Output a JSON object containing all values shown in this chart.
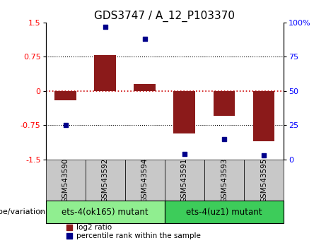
{
  "title": "GDS3747 / A_12_P103370",
  "samples": [
    "GSM543590",
    "GSM543592",
    "GSM543594",
    "GSM543591",
    "GSM543593",
    "GSM543595"
  ],
  "log2_ratio": [
    -0.2,
    0.78,
    0.15,
    -0.93,
    -0.55,
    -1.1
  ],
  "percentile": [
    25,
    97,
    88,
    4,
    15,
    3
  ],
  "ylim_left": [
    -1.5,
    1.5
  ],
  "ylim_right": [
    0,
    100
  ],
  "yticks_left": [
    -1.5,
    -0.75,
    0,
    0.75,
    1.5
  ],
  "yticks_right": [
    0,
    25,
    50,
    75,
    100
  ],
  "ytick_labels_left": [
    "-1.5",
    "-0.75",
    "0",
    "0.75",
    "1.5"
  ],
  "ytick_labels_right": [
    "0",
    "25",
    "50",
    "75",
    "100%"
  ],
  "bar_color": "#8B1A1A",
  "dot_color": "#00008B",
  "hline_color": "#CC0000",
  "dotted_color": "#000000",
  "sample_box_color": "#C8C8C8",
  "groups": [
    {
      "label": "ets-4(ok165) mutant",
      "indices": [
        0,
        1,
        2
      ],
      "color": "#90EE90"
    },
    {
      "label": "ets-4(uz1) mutant",
      "indices": [
        3,
        4,
        5
      ],
      "color": "#3DCC5A"
    }
  ],
  "xlabel_group": "genotype/variation",
  "legend_log2": "log2 ratio",
  "legend_pct": "percentile rank within the sample",
  "bar_width": 0.55,
  "title_fontsize": 11,
  "tick_fontsize": 8,
  "label_fontsize": 8,
  "group_fontsize": 8.5,
  "sample_fontsize": 7.5
}
